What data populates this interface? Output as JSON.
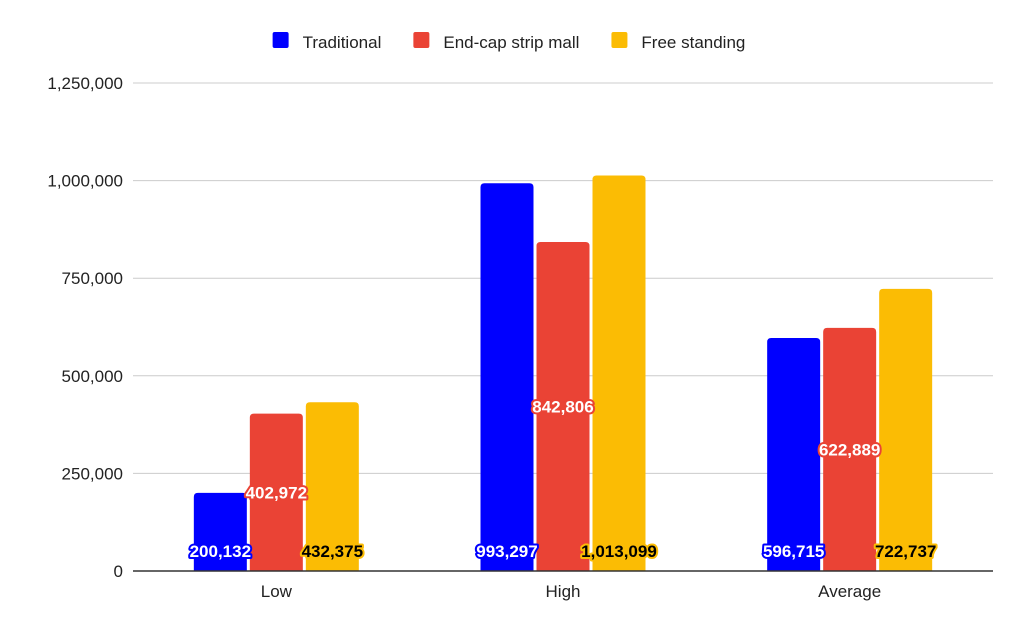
{
  "chart_data": {
    "type": "bar",
    "categories": [
      "Low",
      "High",
      "Average"
    ],
    "series": [
      {
        "name": "Traditional",
        "color": "#0000ff",
        "values": [
          200132,
          993297,
          596715
        ],
        "labels": [
          "200,132",
          "993,297",
          "596,715"
        ],
        "label_color": "#ffffff"
      },
      {
        "name": "End-cap strip mall",
        "color": "#ea4335",
        "values": [
          402972,
          842806,
          622889
        ],
        "labels": [
          "402,972",
          "842,806",
          "622,889"
        ],
        "label_color": "#ffffff"
      },
      {
        "name": "Free standing",
        "color": "#fbbc04",
        "values": [
          432375,
          1013099,
          722737
        ],
        "labels": [
          "432,375",
          "1,013,099",
          "722,737"
        ],
        "label_color": "#000000"
      }
    ],
    "yticks": [
      0,
      250000,
      500000,
      750000,
      1000000,
      1250000
    ],
    "ytick_labels": [
      "0",
      "250,000",
      "500,000",
      "750,000",
      "1,000,000",
      "1,250,000"
    ],
    "ylim": [
      0,
      1250000
    ],
    "legend_position": "top",
    "grid": true,
    "title": "",
    "xlabel": "",
    "ylabel": ""
  }
}
